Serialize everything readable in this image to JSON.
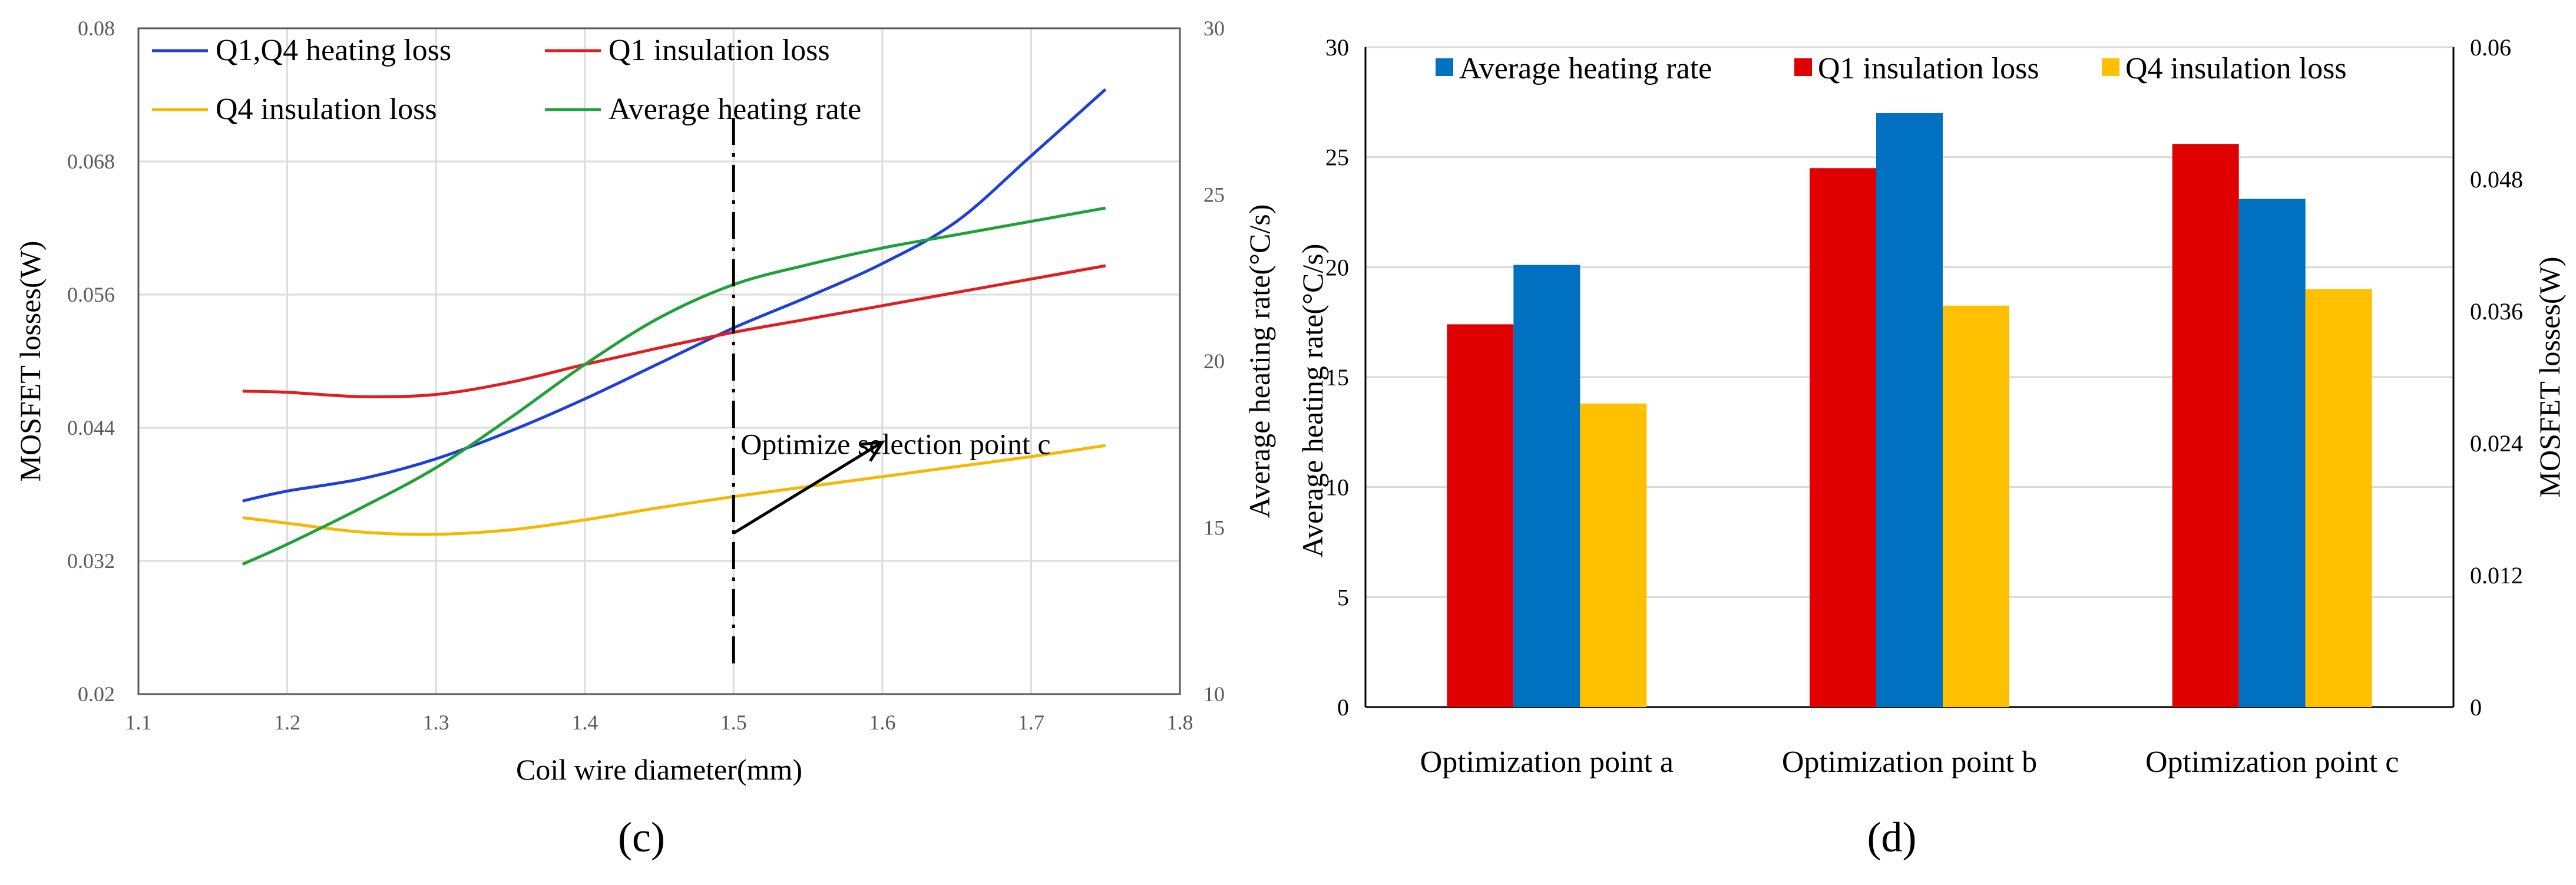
{
  "chart_data": [
    {
      "type": "line",
      "panel_label": "(c)",
      "xlabel": "Coil wire diameter(mm)",
      "ylabel_left": "MOSFET losses(W)",
      "ylabel_right": "Average heating rate(°C/s)",
      "xlim": [
        1.1,
        1.8
      ],
      "x_ticks": [
        "1.1",
        "1.2",
        "1.3",
        "1.4",
        "1.5",
        "1.6",
        "1.7",
        "1.8"
      ],
      "ylim_left": [
        0.02,
        0.08
      ],
      "y_ticks_left": [
        "0.02",
        "0.032",
        "0.044",
        "0.056",
        "0.068",
        "0.08"
      ],
      "ylim_right": [
        10,
        30
      ],
      "y_ticks_right": [
        "10",
        "15",
        "20",
        "25",
        "30"
      ],
      "grid": true,
      "legend_position": "top",
      "series": [
        {
          "name": "Q1,Q4 heating loss",
          "axis": "left",
          "color": "#1f3fd6",
          "x": [
            1.17,
            1.2,
            1.25,
            1.3,
            1.35,
            1.4,
            1.45,
            1.5,
            1.55,
            1.6,
            1.65,
            1.7,
            1.75
          ],
          "y": [
            0.0374,
            0.0383,
            0.0394,
            0.0412,
            0.0437,
            0.0466,
            0.0498,
            0.053,
            0.0558,
            0.0588,
            0.0626,
            0.0685,
            0.0745
          ]
        },
        {
          "name": "Q1 insulation loss",
          "axis": "left",
          "color": "#e01e1e",
          "x": [
            1.17,
            1.2,
            1.25,
            1.3,
            1.35,
            1.4,
            1.45,
            1.5,
            1.55,
            1.6,
            1.65,
            1.7,
            1.75
          ],
          "y": [
            0.0473,
            0.0472,
            0.0468,
            0.047,
            0.0481,
            0.0497,
            0.0512,
            0.0526,
            0.0538,
            0.055,
            0.0562,
            0.0574,
            0.0586
          ]
        },
        {
          "name": "Q4 insulation loss",
          "axis": "left",
          "color": "#f5b800",
          "x": [
            1.17,
            1.2,
            1.25,
            1.3,
            1.35,
            1.4,
            1.45,
            1.5,
            1.55,
            1.6,
            1.65,
            1.7,
            1.75
          ],
          "y": [
            0.0359,
            0.0354,
            0.0346,
            0.0344,
            0.0348,
            0.0357,
            0.0368,
            0.0378,
            0.0387,
            0.0396,
            0.0405,
            0.0414,
            0.0424
          ]
        },
        {
          "name": "Average heating rate",
          "axis": "right",
          "color": "#1fa03a",
          "x": [
            1.17,
            1.2,
            1.25,
            1.3,
            1.35,
            1.4,
            1.45,
            1.5,
            1.55,
            1.6,
            1.65,
            1.7,
            1.75
          ],
          "y": [
            13.9,
            14.5,
            15.6,
            16.8,
            18.3,
            19.9,
            21.3,
            22.3,
            22.9,
            23.4,
            23.8,
            24.2,
            24.6
          ]
        }
      ],
      "annotations": [
        {
          "text": "Optimize selection point c",
          "vline_x": 1.5,
          "vline_style": "dashed",
          "arrow_from": [
            1.5,
            0.0345
          ],
          "arrow_to": [
            1.6,
            0.0427
          ],
          "text_at": [
            1.5,
            0.0435
          ]
        }
      ]
    },
    {
      "type": "bar",
      "panel_label": "(d)",
      "categories": [
        "Optimization point a",
        "Optimization point b",
        "Optimization point c"
      ],
      "ylabel_left": "Average  heating rate(°C/s)",
      "ylabel_right": "MOSFET losses(W)",
      "ylim_left": [
        0,
        30
      ],
      "y_ticks_left": [
        "0",
        "5",
        "10",
        "15",
        "20",
        "25",
        "30"
      ],
      "ylim_right": [
        0,
        0.06
      ],
      "y_ticks_right": [
        "0",
        "0.012",
        "0.024",
        "0.036",
        "0.048",
        "0.06"
      ],
      "grid": true,
      "legend_position": "top",
      "series_order_in_group": [
        "Q1 insulation loss",
        "Average heating rate",
        "Q4 insulation loss"
      ],
      "series": [
        {
          "name": "Average heating rate",
          "axis": "left",
          "color": "#0070c0",
          "values": [
            20.1,
            27.0,
            23.1
          ]
        },
        {
          "name": "Q1 insulation loss",
          "axis": "right",
          "color": "#e00000",
          "values": [
            0.0348,
            0.049,
            0.0512
          ]
        },
        {
          "name": "Q4 insulation loss",
          "axis": "right",
          "color": "#ffc000",
          "values": [
            0.0276,
            0.0365,
            0.038
          ]
        }
      ]
    }
  ]
}
